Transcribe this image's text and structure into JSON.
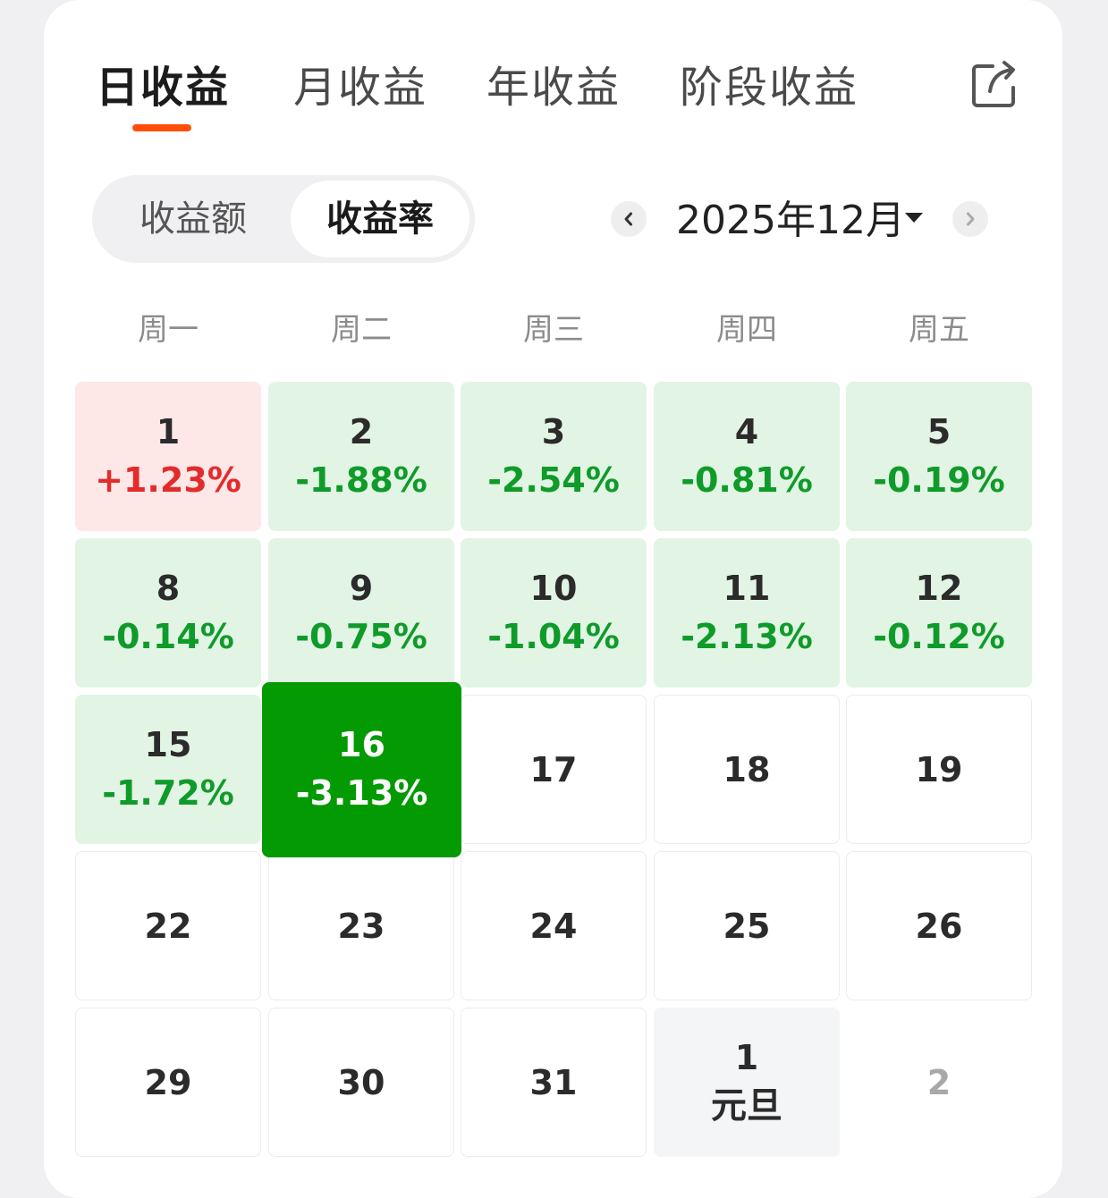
{
  "tabs": [
    {
      "label": "日收益",
      "active": true
    },
    {
      "label": "月收益",
      "active": false
    },
    {
      "label": "年收益",
      "active": false
    },
    {
      "label": "阶段收益",
      "active": false
    }
  ],
  "share_icon": "share-export-icon",
  "toggle": {
    "amount_label": "收益额",
    "rate_label": "收益率",
    "selected": "收益率"
  },
  "month_selector": {
    "label": "2025年12月",
    "prev_icon": "chevron-left-icon",
    "next_icon": "chevron-right-icon",
    "dropdown_icon": "caret-down-icon"
  },
  "weekdays": [
    "周一",
    "周二",
    "周三",
    "周四",
    "周五"
  ],
  "colors": {
    "accent": "#ff4d0b",
    "gain": "#e42b2b",
    "loss": "#0f9b2a",
    "loss_bg": "#e2f4e4",
    "gain_bg": "#fde7e7",
    "selected_bg": "#049a04"
  },
  "calendar": [
    [
      {
        "day": "1",
        "value": "+1.23%",
        "state": "gain"
      },
      {
        "day": "2",
        "value": "-1.88%",
        "state": "loss"
      },
      {
        "day": "3",
        "value": "-2.54%",
        "state": "loss"
      },
      {
        "day": "4",
        "value": "-0.81%",
        "state": "loss"
      },
      {
        "day": "5",
        "value": "-0.19%",
        "state": "loss"
      }
    ],
    [
      {
        "day": "8",
        "value": "-0.14%",
        "state": "loss"
      },
      {
        "day": "9",
        "value": "-0.75%",
        "state": "loss"
      },
      {
        "day": "10",
        "value": "-1.04%",
        "state": "loss"
      },
      {
        "day": "11",
        "value": "-2.13%",
        "state": "loss"
      },
      {
        "day": "12",
        "value": "-0.12%",
        "state": "loss"
      }
    ],
    [
      {
        "day": "15",
        "value": "-1.72%",
        "state": "loss"
      },
      {
        "day": "16",
        "value": "-3.13%",
        "state": "selected"
      },
      {
        "day": "17",
        "value": "",
        "state": "empty"
      },
      {
        "day": "18",
        "value": "",
        "state": "empty"
      },
      {
        "day": "19",
        "value": "",
        "state": "empty"
      }
    ],
    [
      {
        "day": "22",
        "value": "",
        "state": "empty"
      },
      {
        "day": "23",
        "value": "",
        "state": "empty"
      },
      {
        "day": "24",
        "value": "",
        "state": "empty"
      },
      {
        "day": "25",
        "value": "",
        "state": "empty"
      },
      {
        "day": "26",
        "value": "",
        "state": "empty"
      }
    ],
    [
      {
        "day": "29",
        "value": "",
        "state": "empty"
      },
      {
        "day": "30",
        "value": "",
        "state": "empty"
      },
      {
        "day": "31",
        "value": "",
        "state": "empty"
      },
      {
        "day": "1",
        "value": "元旦",
        "state": "holiday"
      },
      {
        "day": "2",
        "value": "",
        "state": "muted"
      }
    ]
  ]
}
